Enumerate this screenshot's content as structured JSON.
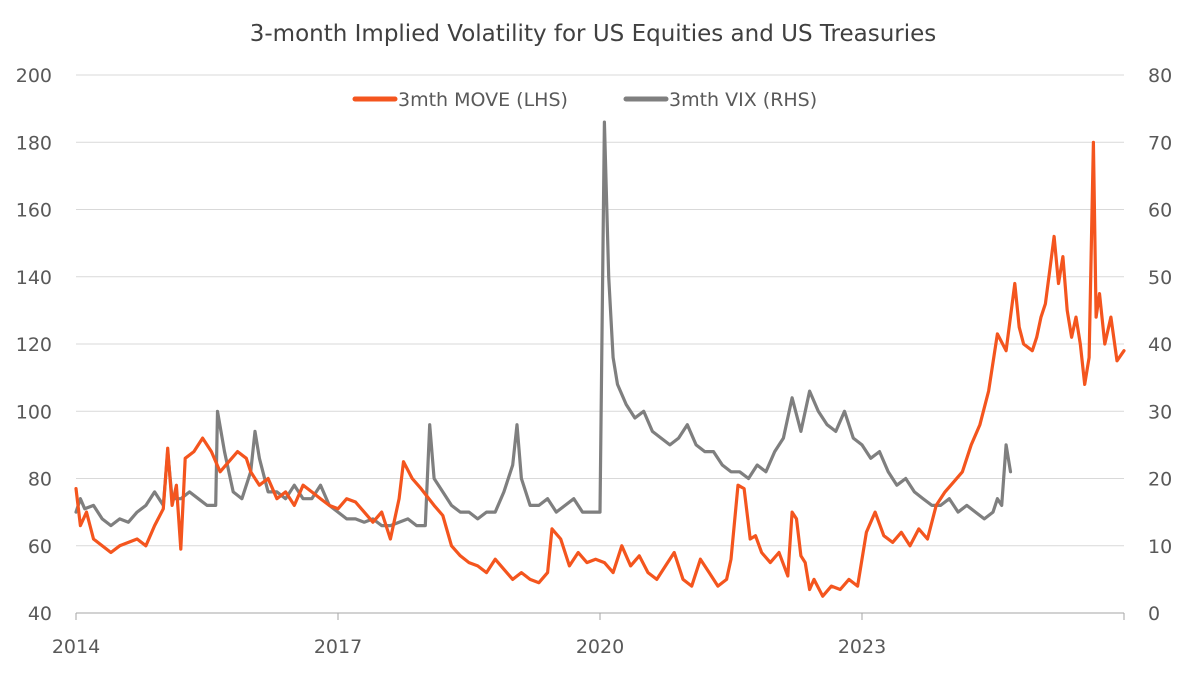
{
  "chart_data": {
    "type": "line",
    "title": "3-month Implied Volatility for US Equities and US Treasuries",
    "legend_position": "top-center",
    "grid": true,
    "x_axis": {
      "ticks": [
        "2014",
        "2017",
        "2020",
        "2023"
      ],
      "range": [
        2014,
        2026
      ]
    },
    "y_left": {
      "ticks": [
        "40",
        "60",
        "80",
        "100",
        "120",
        "140",
        "160",
        "180",
        "200"
      ],
      "range": [
        40,
        200
      ]
    },
    "y_right": {
      "ticks": [
        "0",
        "10",
        "20",
        "30",
        "40",
        "50",
        "60",
        "70",
        "80"
      ],
      "range": [
        0,
        80
      ]
    },
    "series": [
      {
        "name": "3mth MOVE (LHS)",
        "axis": "left",
        "color": "#F4551E",
        "points": [
          [
            2014.0,
            77
          ],
          [
            2014.05,
            66
          ],
          [
            2014.12,
            70
          ],
          [
            2014.2,
            62
          ],
          [
            2014.3,
            60
          ],
          [
            2014.4,
            58
          ],
          [
            2014.5,
            60
          ],
          [
            2014.6,
            61
          ],
          [
            2014.7,
            62
          ],
          [
            2014.8,
            60
          ],
          [
            2014.9,
            66
          ],
          [
            2015.0,
            71
          ],
          [
            2015.05,
            89
          ],
          [
            2015.1,
            72
          ],
          [
            2015.15,
            78
          ],
          [
            2015.2,
            59
          ],
          [
            2015.25,
            86
          ],
          [
            2015.35,
            88
          ],
          [
            2015.45,
            92
          ],
          [
            2015.55,
            88
          ],
          [
            2015.65,
            82
          ],
          [
            2015.75,
            85
          ],
          [
            2015.85,
            88
          ],
          [
            2015.95,
            86
          ],
          [
            2016.0,
            82
          ],
          [
            2016.1,
            78
          ],
          [
            2016.2,
            80
          ],
          [
            2016.3,
            74
          ],
          [
            2016.4,
            76
          ],
          [
            2016.5,
            72
          ],
          [
            2016.6,
            78
          ],
          [
            2016.7,
            76
          ],
          [
            2016.8,
            74
          ],
          [
            2016.9,
            72
          ],
          [
            2017.0,
            71
          ],
          [
            2017.1,
            74
          ],
          [
            2017.2,
            73
          ],
          [
            2017.3,
            70
          ],
          [
            2017.4,
            67
          ],
          [
            2017.5,
            70
          ],
          [
            2017.6,
            62
          ],
          [
            2017.7,
            74
          ],
          [
            2017.75,
            85
          ],
          [
            2017.85,
            80
          ],
          [
            2017.95,
            77
          ],
          [
            2018.1,
            72
          ],
          [
            2018.2,
            69
          ],
          [
            2018.3,
            60
          ],
          [
            2018.4,
            57
          ],
          [
            2018.5,
            55
          ],
          [
            2018.6,
            54
          ],
          [
            2018.7,
            52
          ],
          [
            2018.8,
            56
          ],
          [
            2018.9,
            53
          ],
          [
            2019.0,
            50
          ],
          [
            2019.1,
            52
          ],
          [
            2019.2,
            50
          ],
          [
            2019.3,
            49
          ],
          [
            2019.4,
            52
          ],
          [
            2019.45,
            65
          ],
          [
            2019.55,
            62
          ],
          [
            2019.65,
            54
          ],
          [
            2019.75,
            58
          ],
          [
            2019.85,
            55
          ],
          [
            2019.95,
            56
          ],
          [
            2020.05,
            55
          ],
          [
            2020.15,
            52
          ],
          [
            2020.25,
            60
          ],
          [
            2020.35,
            54
          ],
          [
            2020.45,
            57
          ],
          [
            2020.55,
            52
          ],
          [
            2020.65,
            50
          ],
          [
            2020.75,
            54
          ],
          [
            2020.85,
            58
          ],
          [
            2020.95,
            50
          ],
          [
            2021.05,
            48
          ],
          [
            2021.15,
            56
          ],
          [
            2021.25,
            52
          ],
          [
            2021.35,
            48
          ],
          [
            2021.45,
            50
          ],
          [
            2021.5,
            56
          ],
          [
            2021.58,
            78
          ],
          [
            2021.65,
            77
          ],
          [
            2021.72,
            62
          ],
          [
            2021.78,
            63
          ],
          [
            2021.85,
            58
          ],
          [
            2021.95,
            55
          ],
          [
            2022.05,
            58
          ],
          [
            2022.15,
            51
          ],
          [
            2022.2,
            70
          ],
          [
            2022.25,
            68
          ],
          [
            2022.3,
            57
          ],
          [
            2022.35,
            55
          ],
          [
            2022.4,
            47
          ],
          [
            2022.45,
            50
          ],
          [
            2022.55,
            45
          ],
          [
            2022.65,
            48
          ],
          [
            2022.75,
            47
          ],
          [
            2022.85,
            50
          ],
          [
            2022.95,
            48
          ],
          [
            2023.05,
            64
          ],
          [
            2023.15,
            70
          ],
          [
            2023.25,
            63
          ],
          [
            2023.35,
            61
          ],
          [
            2023.45,
            64
          ],
          [
            2023.55,
            60
          ],
          [
            2023.65,
            65
          ],
          [
            2023.75,
            62
          ],
          [
            2023.85,
            72
          ],
          [
            2023.95,
            76
          ],
          [
            2024.05,
            79
          ],
          [
            2024.15,
            82
          ],
          [
            2024.25,
            90
          ],
          [
            2024.35,
            96
          ],
          [
            2024.45,
            106
          ],
          [
            2024.55,
            123
          ],
          [
            2024.65,
            118
          ],
          [
            2024.75,
            138
          ],
          [
            2024.8,
            125
          ],
          [
            2024.85,
            120
          ],
          [
            2024.95,
            118
          ],
          [
            2025.0,
            122
          ],
          [
            2025.05,
            128
          ],
          [
            2025.1,
            132
          ],
          [
            2025.15,
            142
          ],
          [
            2025.2,
            152
          ],
          [
            2025.25,
            138
          ],
          [
            2025.3,
            146
          ],
          [
            2025.35,
            130
          ],
          [
            2025.4,
            122
          ],
          [
            2025.45,
            128
          ],
          [
            2025.5,
            120
          ],
          [
            2025.55,
            108
          ],
          [
            2025.6,
            116
          ],
          [
            2025.65,
            180
          ],
          [
            2025.68,
            128
          ],
          [
            2025.72,
            135
          ],
          [
            2025.78,
            120
          ],
          [
            2025.85,
            128
          ],
          [
            2025.92,
            115
          ],
          [
            2026.0,
            118
          ]
        ]
      },
      {
        "name": "3mth VIX (RHS)",
        "axis": "right",
        "color": "#7F7F7F",
        "points": [
          [
            2014.0,
            15
          ],
          [
            2014.05,
            17
          ],
          [
            2014.1,
            15.5
          ],
          [
            2014.2,
            16
          ],
          [
            2014.3,
            14
          ],
          [
            2014.4,
            13
          ],
          [
            2014.5,
            14
          ],
          [
            2014.6,
            13.5
          ],
          [
            2014.7,
            15
          ],
          [
            2014.8,
            16
          ],
          [
            2014.9,
            18
          ],
          [
            2015.0,
            16
          ],
          [
            2015.05,
            24
          ],
          [
            2015.1,
            17
          ],
          [
            2015.2,
            17
          ],
          [
            2015.3,
            18
          ],
          [
            2015.4,
            17
          ],
          [
            2015.5,
            16
          ],
          [
            2015.6,
            16
          ],
          [
            2015.62,
            30
          ],
          [
            2015.7,
            24
          ],
          [
            2015.8,
            18
          ],
          [
            2015.9,
            17
          ],
          [
            2016.0,
            21
          ],
          [
            2016.05,
            27
          ],
          [
            2016.1,
            23
          ],
          [
            2016.2,
            18
          ],
          [
            2016.3,
            18
          ],
          [
            2016.4,
            17
          ],
          [
            2016.5,
            19
          ],
          [
            2016.6,
            17
          ],
          [
            2016.7,
            17
          ],
          [
            2016.8,
            19
          ],
          [
            2016.9,
            16
          ],
          [
            2017.0,
            15
          ],
          [
            2017.1,
            14
          ],
          [
            2017.2,
            14
          ],
          [
            2017.3,
            13.5
          ],
          [
            2017.4,
            14
          ],
          [
            2017.5,
            13
          ],
          [
            2017.6,
            13
          ],
          [
            2017.7,
            13.5
          ],
          [
            2017.8,
            14
          ],
          [
            2017.9,
            13
          ],
          [
            2018.0,
            13
          ],
          [
            2018.05,
            28
          ],
          [
            2018.1,
            20
          ],
          [
            2018.2,
            18
          ],
          [
            2018.3,
            16
          ],
          [
            2018.4,
            15
          ],
          [
            2018.5,
            15
          ],
          [
            2018.6,
            14
          ],
          [
            2018.7,
            15
          ],
          [
            2018.8,
            15
          ],
          [
            2018.9,
            18
          ],
          [
            2019.0,
            22
          ],
          [
            2019.05,
            28
          ],
          [
            2019.1,
            20
          ],
          [
            2019.2,
            16
          ],
          [
            2019.3,
            16
          ],
          [
            2019.4,
            17
          ],
          [
            2019.5,
            15
          ],
          [
            2019.6,
            16
          ],
          [
            2019.7,
            17
          ],
          [
            2019.8,
            15
          ],
          [
            2019.9,
            15
          ],
          [
            2020.0,
            15
          ],
          [
            2020.05,
            73
          ],
          [
            2020.1,
            50
          ],
          [
            2020.15,
            38
          ],
          [
            2020.2,
            34
          ],
          [
            2020.3,
            31
          ],
          [
            2020.4,
            29
          ],
          [
            2020.5,
            30
          ],
          [
            2020.6,
            27
          ],
          [
            2020.7,
            26
          ],
          [
            2020.8,
            25
          ],
          [
            2020.9,
            26
          ],
          [
            2021.0,
            28
          ],
          [
            2021.1,
            25
          ],
          [
            2021.2,
            24
          ],
          [
            2021.3,
            24
          ],
          [
            2021.4,
            22
          ],
          [
            2021.5,
            21
          ],
          [
            2021.6,
            21
          ],
          [
            2021.7,
            20
          ],
          [
            2021.8,
            22
          ],
          [
            2021.9,
            21
          ],
          [
            2022.0,
            24
          ],
          [
            2022.1,
            26
          ],
          [
            2022.2,
            32
          ],
          [
            2022.3,
            27
          ],
          [
            2022.4,
            33
          ],
          [
            2022.5,
            30
          ],
          [
            2022.6,
            28
          ],
          [
            2022.7,
            27
          ],
          [
            2022.8,
            30
          ],
          [
            2022.9,
            26
          ],
          [
            2023.0,
            25
          ],
          [
            2023.1,
            23
          ],
          [
            2023.2,
            24
          ],
          [
            2023.3,
            21
          ],
          [
            2023.4,
            19
          ],
          [
            2023.5,
            20
          ],
          [
            2023.6,
            18
          ],
          [
            2023.7,
            17
          ],
          [
            2023.8,
            16
          ],
          [
            2023.9,
            16
          ],
          [
            2024.0,
            17
          ],
          [
            2024.1,
            15
          ],
          [
            2024.2,
            16
          ],
          [
            2024.3,
            15
          ],
          [
            2024.4,
            14
          ],
          [
            2024.5,
            15
          ],
          [
            2024.55,
            17
          ],
          [
            2024.6,
            16
          ],
          [
            2024.65,
            25
          ],
          [
            2024.7,
            21
          ]
        ]
      }
    ]
  }
}
